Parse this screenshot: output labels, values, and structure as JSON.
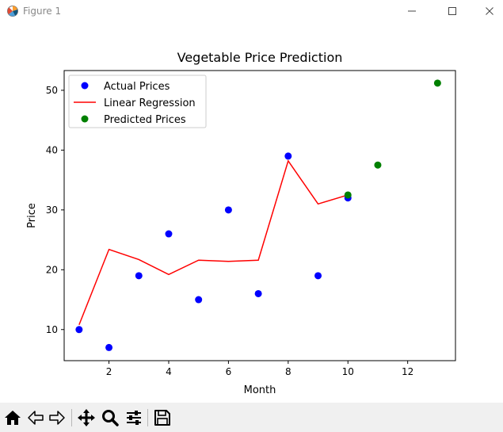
{
  "window": {
    "title": "Figure 1",
    "app_icon": "matplotlib-figure-icon",
    "controls": [
      "minimize-icon",
      "maximize-icon",
      "close-icon"
    ]
  },
  "toolbar": {
    "buttons": [
      {
        "name": "home-button",
        "icon": "home-icon",
        "tooltip": "Reset original view"
      },
      {
        "name": "back-button",
        "icon": "back-arrow-icon",
        "tooltip": "Back to previous view"
      },
      {
        "name": "forward-button",
        "icon": "forward-arrow-icon",
        "tooltip": "Forward to next view"
      },
      {
        "name": "pan-button",
        "icon": "move-icon",
        "tooltip": "Pan axes"
      },
      {
        "name": "zoom-button",
        "icon": "zoom-icon",
        "tooltip": "Zoom to rectangle"
      },
      {
        "name": "configure-subplots-button",
        "icon": "sliders-icon",
        "tooltip": "Configure subplots"
      },
      {
        "name": "save-button",
        "icon": "save-icon",
        "tooltip": "Save the figure"
      }
    ]
  },
  "colors": {
    "actual": "#0000ff",
    "regression": "#ff0000",
    "predicted": "#008000",
    "axes": "#000000",
    "toolbar_bg": "#f0f0f0"
  },
  "chart_data": {
    "type": "scatter",
    "title": "Vegetable Price Prediction",
    "xlabel": "Month",
    "ylabel": "Price",
    "xlim": [
      0.5,
      13.6
    ],
    "ylim": [
      4.8,
      53.3
    ],
    "xticks": [
      2,
      4,
      6,
      8,
      10,
      12
    ],
    "yticks": [
      10,
      20,
      30,
      40,
      50
    ],
    "grid": false,
    "legend_position": "upper-left",
    "series": [
      {
        "name": "Actual Prices",
        "kind": "scatter",
        "color": "#0000ff",
        "x": [
          1,
          2,
          3,
          4,
          5,
          6,
          7,
          8,
          9,
          10
        ],
        "y": [
          10,
          7,
          19,
          26,
          15,
          30,
          16,
          39,
          19,
          32
        ]
      },
      {
        "name": "Linear Regression",
        "kind": "line",
        "color": "#ff0000",
        "x": [
          1,
          2,
          3,
          4,
          5,
          6,
          7,
          8,
          9,
          10
        ],
        "y": [
          10.8,
          23.4,
          21.7,
          19.2,
          21.6,
          21.4,
          21.6,
          38.2,
          31.0,
          32.5
        ]
      },
      {
        "name": "Predicted Prices",
        "kind": "scatter",
        "color": "#008000",
        "x": [
          10,
          11,
          13
        ],
        "y": [
          32.5,
          37.5,
          51.2
        ]
      }
    ]
  }
}
